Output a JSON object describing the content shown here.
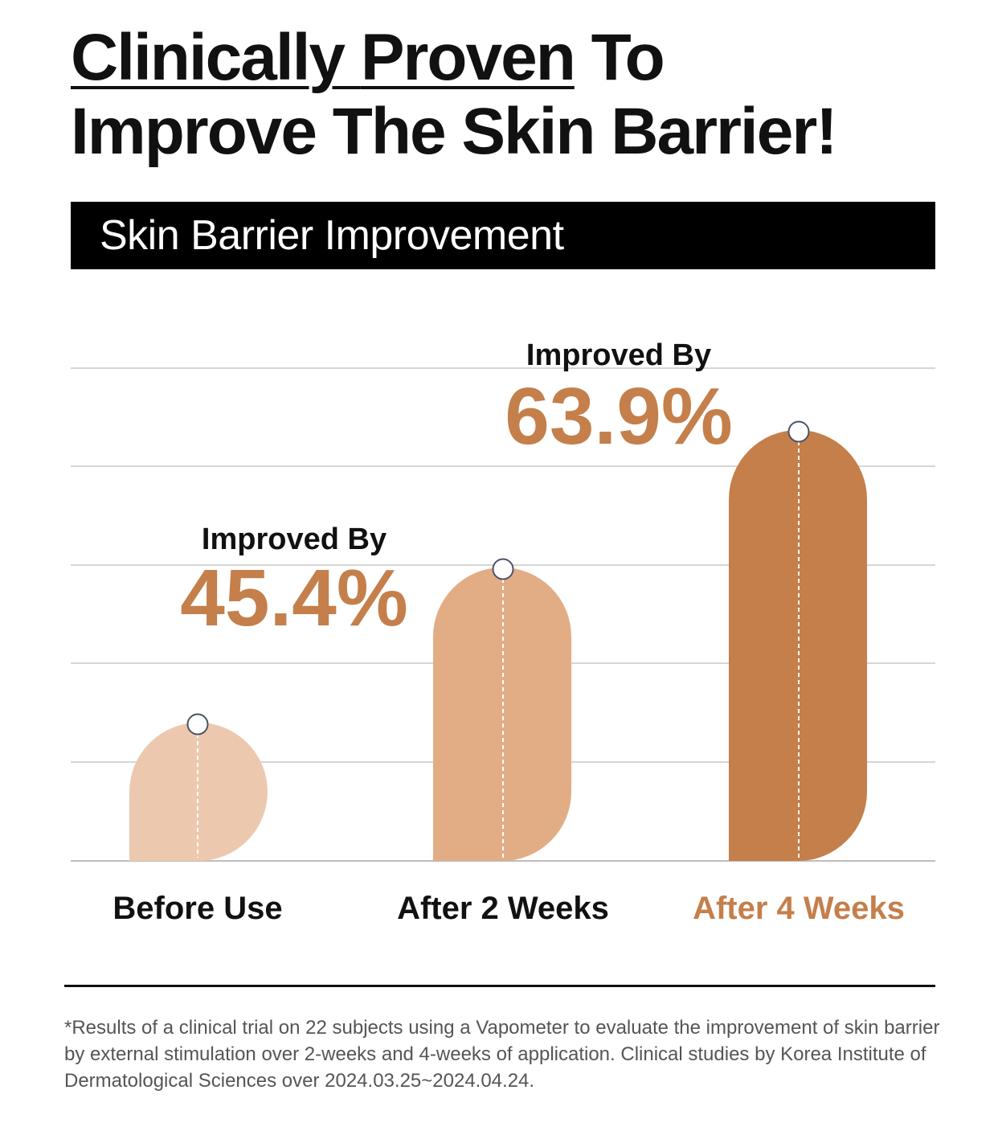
{
  "headline": {
    "line1_part1": "Clinically",
    "line1_part2": "Proven",
    "line1_part3": "To",
    "line2": "Improve The Skin Barrier!"
  },
  "banner_title": "Skin Barrier Improvement",
  "colors": {
    "before": "#ecc9ae",
    "week2": "#e2ac85",
    "week4": "#c47f4b",
    "accent_text": "#c47f4b"
  },
  "chart_data": {
    "type": "bar",
    "title": "Skin Barrier Improvement",
    "categories": [
      "Before Use",
      "After 2 Weeks",
      "After 4 Weeks"
    ],
    "values": [
      1.0,
      1.454,
      1.639
    ],
    "annotations": [
      {
        "category": "After 2 Weeks",
        "label": "Improved By",
        "value_text": "45.4%"
      },
      {
        "category": "After 4 Weeks",
        "label": "Improved By",
        "value_text": "63.9%"
      }
    ],
    "grid": true,
    "legend": "none"
  },
  "footnote": "*Results of a clinical trial on 22 subjects using a Vapometer to evaluate the improvement of skin barrier by external stimulation over 2-weeks and 4-weeks of application. Clinical studies by Korea Institute of Dermatological Sciences over 2024.03.25~2024.04.24."
}
